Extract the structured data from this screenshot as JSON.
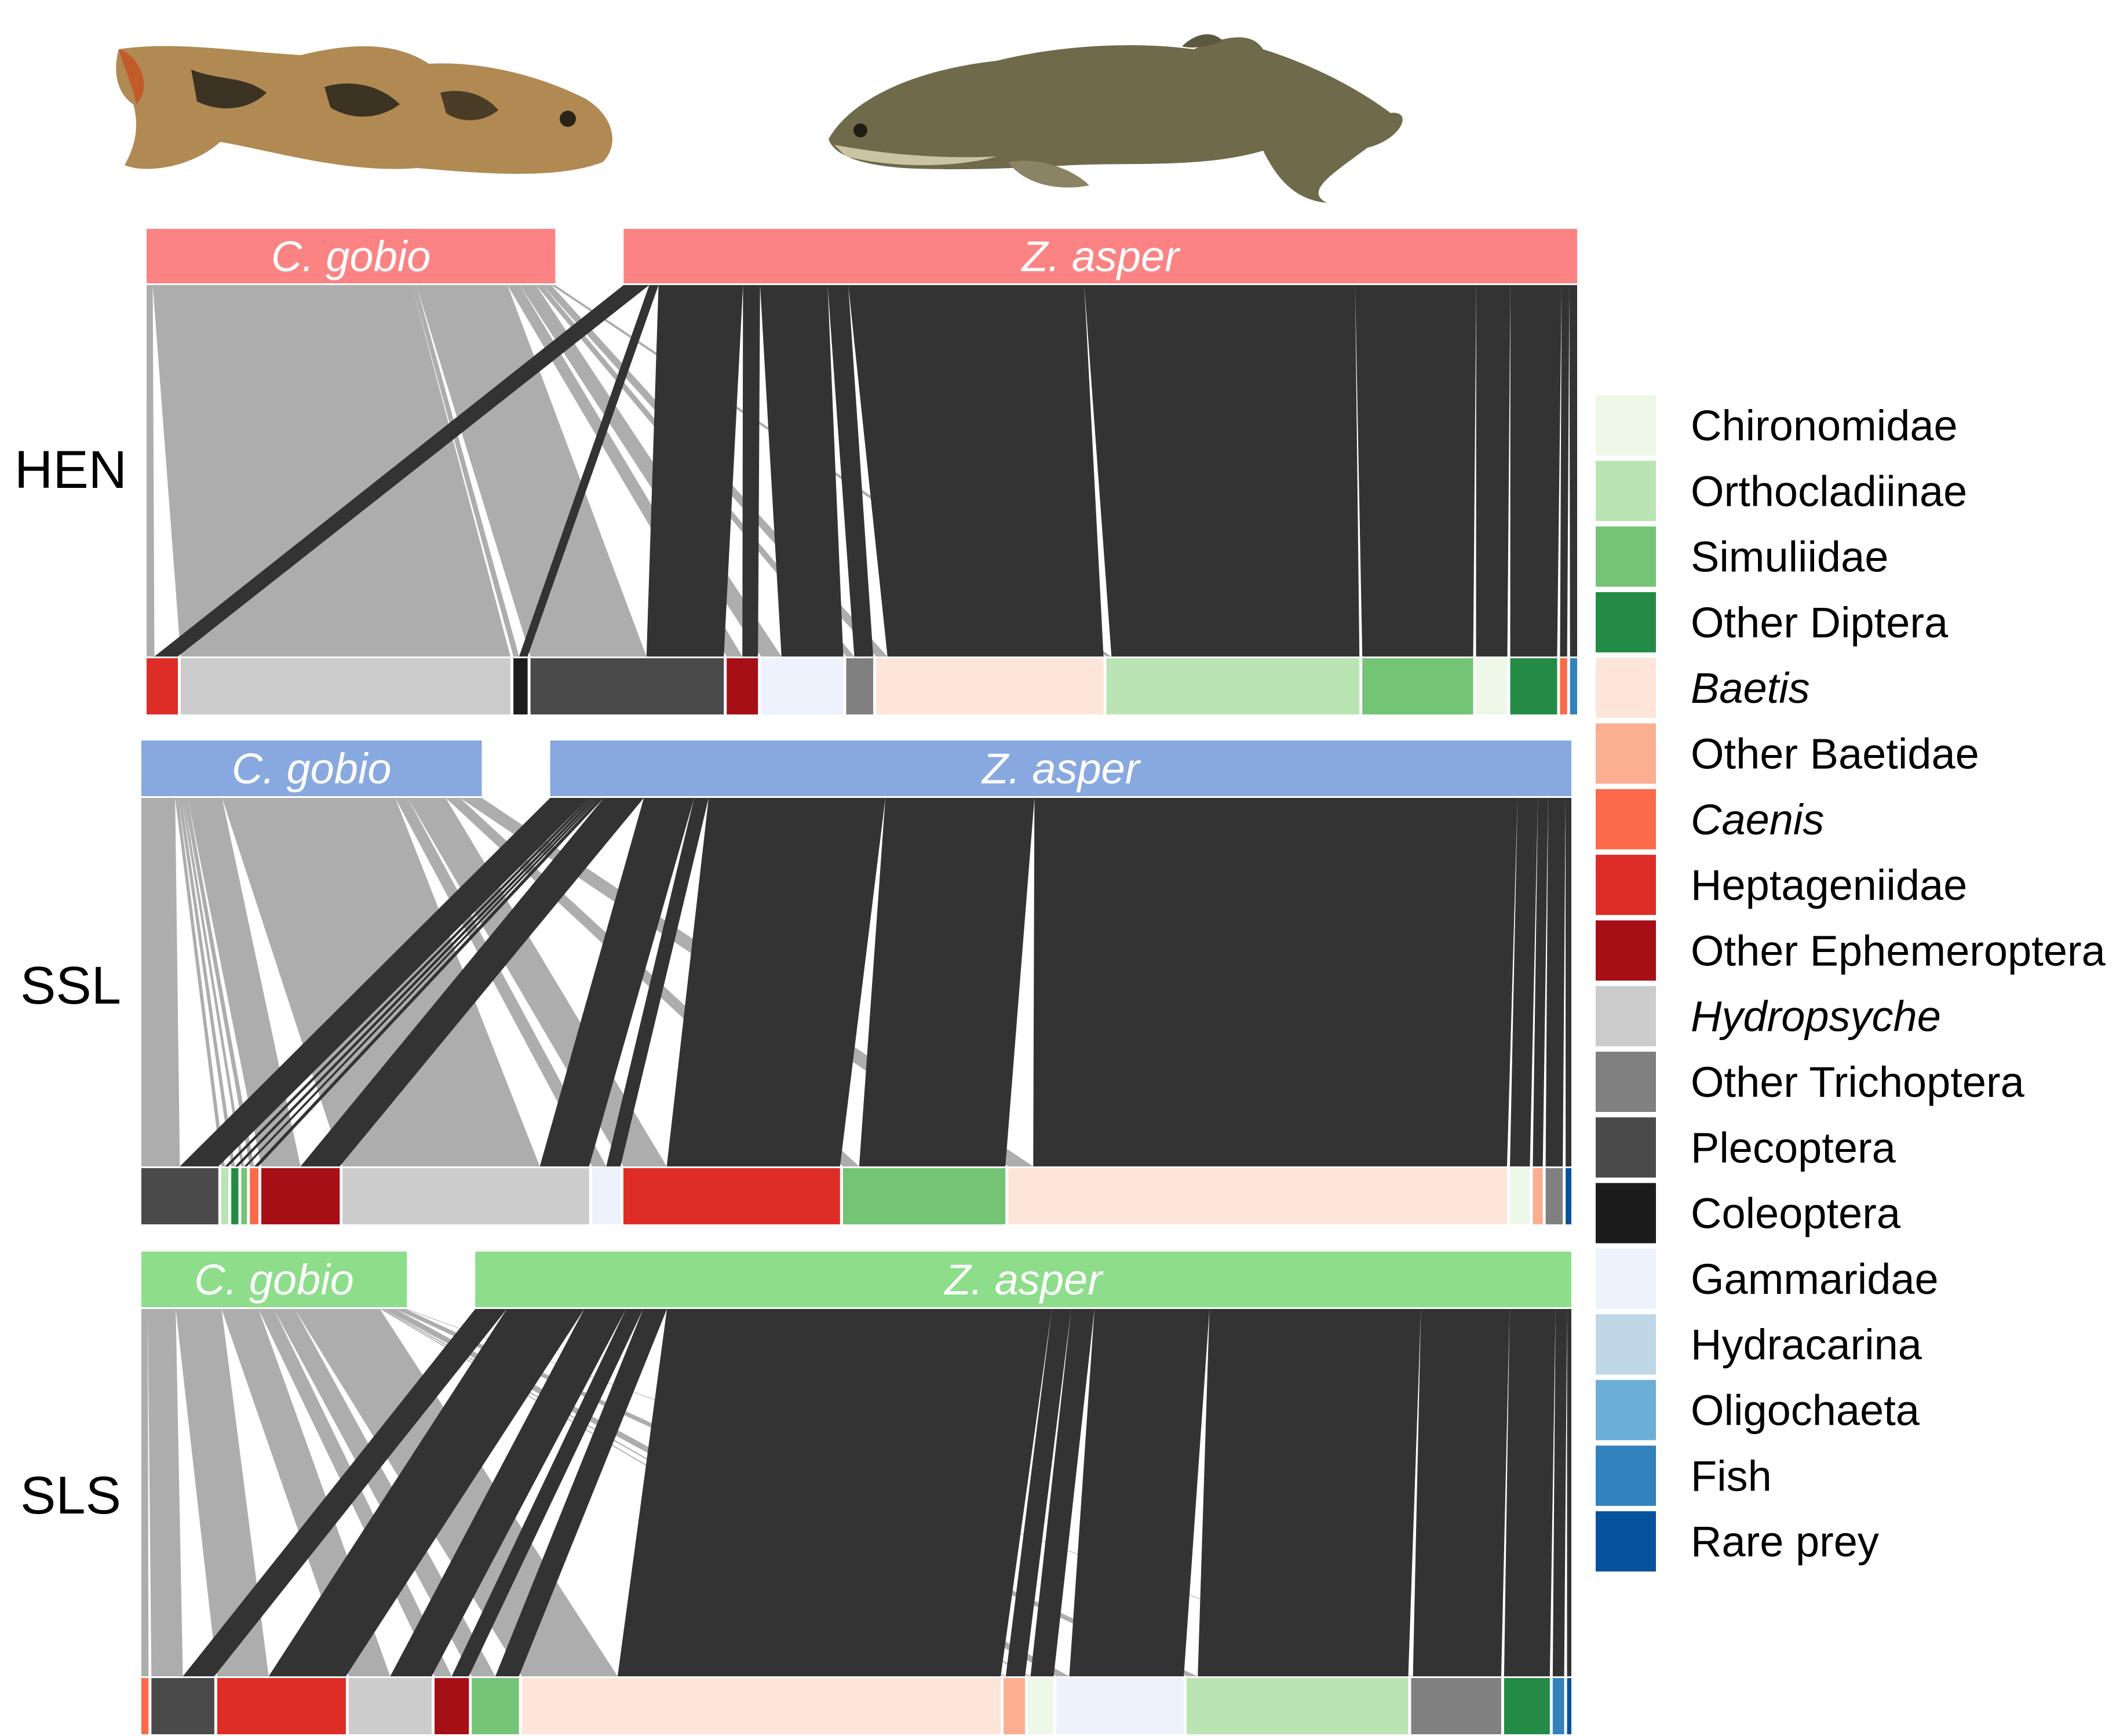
{
  "chart_data": {
    "type": "bipartite-network",
    "title": "",
    "predators": [
      "C. gobio",
      "Z. asper"
    ],
    "link_colors": {
      "C. gobio": "#adadad",
      "Z. asper": "#333333"
    },
    "legend": [
      {
        "name": "Chironomidae",
        "color": "#edf8e9",
        "italic": false
      },
      {
        "name": "Orthocladiinae",
        "color": "#bae4b3",
        "italic": false
      },
      {
        "name": "Simuliidae",
        "color": "#74c476",
        "italic": false
      },
      {
        "name": "Other Diptera",
        "color": "#238b45",
        "italic": false
      },
      {
        "name": "Baetis",
        "color": "#fee5d9",
        "italic": true
      },
      {
        "name": "Other Baetidae",
        "color": "#fcae91",
        "italic": false
      },
      {
        "name": "Caenis",
        "color": "#fb6a4a",
        "italic": true
      },
      {
        "name": "Heptageniidae",
        "color": "#de2d26",
        "italic": false
      },
      {
        "name": "Other Ephemeroptera",
        "color": "#a50f15",
        "italic": false
      },
      {
        "name": "Hydropsyche",
        "color": "#cccccc",
        "italic": true
      },
      {
        "name": "Other Trichoptera",
        "color": "#808080",
        "italic": false
      },
      {
        "name": "Plecoptera",
        "color": "#4a4a4a",
        "italic": false
      },
      {
        "name": "Coleoptera",
        "color": "#1c1c1c",
        "italic": false
      },
      {
        "name": "Gammaridae",
        "color": "#eef2fc",
        "italic": false
      },
      {
        "name": "Hydracarina",
        "color": "#c0d7e8",
        "italic": false
      },
      {
        "name": "Oligochaeta",
        "color": "#6baed6",
        "italic": false
      },
      {
        "name": "Fish",
        "color": "#3182bd",
        "italic": false
      },
      {
        "name": "Rare prey",
        "color": "#08519c",
        "italic": false
      }
    ],
    "sites": [
      {
        "name": "HEN",
        "header_color": "#fc8383",
        "predator_share": {
          "C. gobio": 0.3,
          "Z. asper": 0.7
        },
        "prey": [
          {
            "taxon": "Heptageniidae",
            "share": 0.022,
            "C. gobio": 0.25,
            "Z. asper": 0.75
          },
          {
            "taxon": "Hydropsyche",
            "share": 0.232,
            "C. gobio": 1.0,
            "Z. asper": 0.0
          },
          {
            "taxon": "Coleoptera",
            "share": 0.01,
            "C. gobio": 0.4,
            "Z. asper": 0.6
          },
          {
            "taxon": "Plecoptera",
            "share": 0.136,
            "C. gobio": 0.6,
            "Z. asper": 0.4
          },
          {
            "taxon": "Other Ephemeroptera",
            "share": 0.022,
            "C. gobio": 0.5,
            "Z. asper": 0.5
          },
          {
            "taxon": "Gammaridae",
            "share": 0.058,
            "C. gobio": 0.25,
            "Z. asper": 0.75
          },
          {
            "taxon": "Other Trichoptera",
            "share": 0.019,
            "C. gobio": 0.3,
            "Z. asper": 0.7
          },
          {
            "taxon": "Baetis",
            "share": 0.16,
            "C. gobio": 0.05,
            "Z. asper": 0.95
          },
          {
            "taxon": "Orthocladiinae",
            "share": 0.178,
            "C. gobio": 0.02,
            "Z. asper": 0.98
          },
          {
            "taxon": "Simuliidae",
            "share": 0.078,
            "C. gobio": 0.0,
            "Z. asper": 1.0
          },
          {
            "taxon": "Chironomidae",
            "share": 0.022,
            "C. gobio": 0.0,
            "Z. asper": 1.0
          },
          {
            "taxon": "Other Diptera",
            "share": 0.033,
            "C. gobio": 0.0,
            "Z. asper": 1.0
          },
          {
            "taxon": "Caenis",
            "share": 0.005,
            "C. gobio": 0.0,
            "Z. asper": 1.0
          },
          {
            "taxon": "Fish",
            "share": 0.005,
            "C. gobio": 0.0,
            "Z. asper": 1.0
          }
        ]
      },
      {
        "name": "SSL",
        "header_color": "#88a9e0",
        "predator_share": {
          "C. gobio": 0.25,
          "Z. asper": 0.75
        },
        "prey": [
          {
            "taxon": "Plecoptera",
            "share": 0.054,
            "C. gobio": 0.5,
            "Z. asper": 0.5
          },
          {
            "taxon": "Orthocladiinae",
            "share": 0.005,
            "C. gobio": 0.5,
            "Z. asper": 0.5
          },
          {
            "taxon": "Other Diptera",
            "share": 0.005,
            "C. gobio": 0.5,
            "Z. asper": 0.5
          },
          {
            "taxon": "Simuliidae",
            "share": 0.004,
            "C. gobio": 0.5,
            "Z. asper": 0.5
          },
          {
            "taxon": "Caenis",
            "share": 0.006,
            "C. gobio": 0.5,
            "Z. asper": 0.5
          },
          {
            "taxon": "Other Ephemeroptera",
            "share": 0.055,
            "C. gobio": 0.5,
            "Z. asper": 0.5
          },
          {
            "taxon": "Hydropsyche",
            "share": 0.173,
            "C. gobio": 0.8,
            "Z. asper": 0.2
          },
          {
            "taxon": "Gammaridae",
            "share": 0.02,
            "C. gobio": 0.5,
            "Z. asper": 0.5
          },
          {
            "taxon": "Heptageniidae",
            "share": 0.152,
            "C. gobio": 0.2,
            "Z. asper": 0.8
          },
          {
            "taxon": "Simuliidae",
            "share": 0.114,
            "C. gobio": 0.1,
            "Z. asper": 0.9
          },
          {
            "taxon": "Baetis",
            "share": 0.35,
            "C. gobio": 0.05,
            "Z. asper": 0.95
          },
          {
            "taxon": "Chironomidae",
            "share": 0.014,
            "C. gobio": 0.0,
            "Z. asper": 1.0
          },
          {
            "taxon": "Other Baetidae",
            "share": 0.007,
            "C. gobio": 0.0,
            "Z. asper": 1.0
          },
          {
            "taxon": "Other Trichoptera",
            "share": 0.012,
            "C. gobio": 0.0,
            "Z. asper": 1.0
          },
          {
            "taxon": "Rare prey",
            "share": 0.004,
            "C. gobio": 0.0,
            "Z. asper": 1.0
          }
        ]
      },
      {
        "name": "SLS",
        "header_color": "#8ddd8b",
        "predator_share": {
          "C. gobio": 0.195,
          "Z. asper": 0.805
        },
        "prey": [
          {
            "taxon": "Caenis",
            "share": 0.005,
            "C. gobio": 1.0,
            "Z. asper": 0.0
          },
          {
            "taxon": "Plecoptera",
            "share": 0.044,
            "C. gobio": 0.5,
            "Z. asper": 0.5
          },
          {
            "taxon": "Heptageniidae",
            "share": 0.09,
            "C. gobio": 0.4,
            "Z. asper": 0.6
          },
          {
            "taxon": "Hydropsyche",
            "share": 0.058,
            "C. gobio": 0.5,
            "Z. asper": 0.5
          },
          {
            "taxon": "Other Ephemeroptera",
            "share": 0.024,
            "C. gobio": 0.5,
            "Z. asper": 0.5
          },
          {
            "taxon": "Simuliidae",
            "share": 0.033,
            "C. gobio": 0.5,
            "Z. asper": 0.5
          },
          {
            "taxon": "Baetis",
            "share": 0.335,
            "C. gobio": 0.2,
            "Z. asper": 0.8
          },
          {
            "taxon": "Other Baetidae",
            "share": 0.015,
            "C. gobio": 0.1,
            "Z. asper": 0.9
          },
          {
            "taxon": "Chironomidae",
            "share": 0.018,
            "C. gobio": 0.1,
            "Z. asper": 0.9
          },
          {
            "taxon": "Gammaridae",
            "share": 0.089,
            "C. gobio": 0.1,
            "Z. asper": 0.9
          },
          {
            "taxon": "Orthocladiinae",
            "share": 0.155,
            "C. gobio": 0.05,
            "Z. asper": 0.95
          },
          {
            "taxon": "Other Trichoptera",
            "share": 0.063,
            "C. gobio": 0.02,
            "Z. asper": 0.98
          },
          {
            "taxon": "Other Diptera",
            "share": 0.032,
            "C. gobio": 0.0,
            "Z. asper": 1.0
          },
          {
            "taxon": "Fish",
            "share": 0.008,
            "C. gobio": 0.0,
            "Z. asper": 1.0
          },
          {
            "taxon": "Rare prey",
            "share": 0.003,
            "C. gobio": 0.0,
            "Z. asper": 1.0
          }
        ]
      }
    ]
  }
}
